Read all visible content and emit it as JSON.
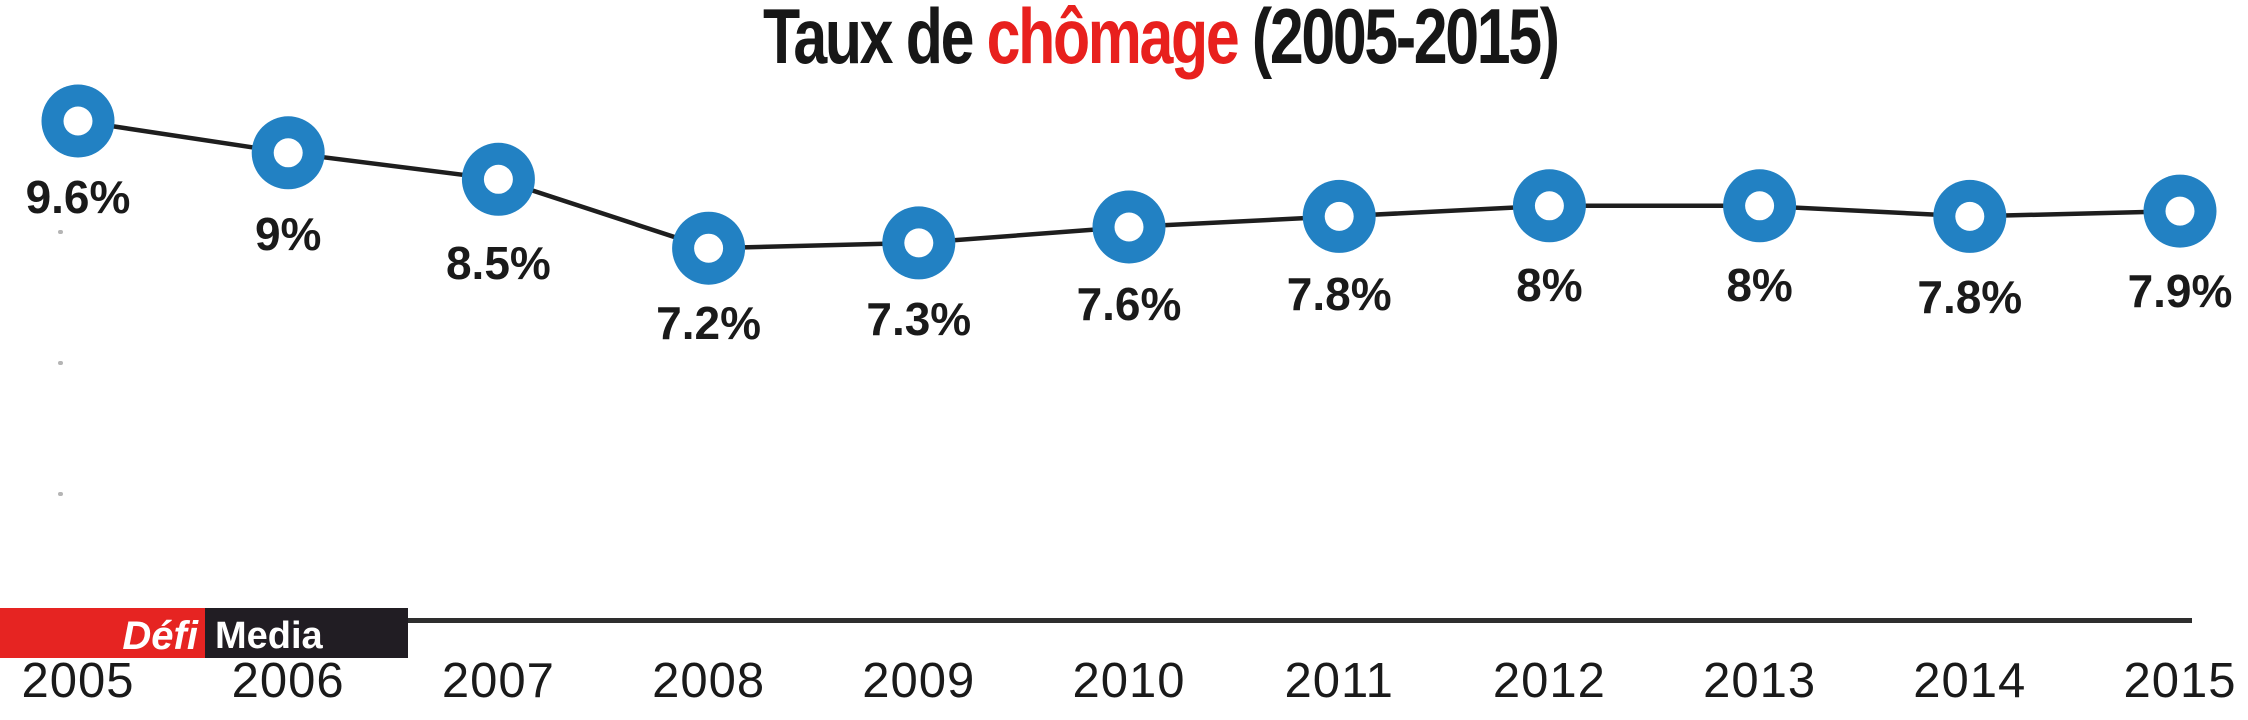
{
  "title": {
    "part1": "Taux de ",
    "highlight": "chômage",
    "part2": " (2005-2015)"
  },
  "branding": {
    "logo_primary": "Défi",
    "logo_secondary": "Media"
  },
  "colors": {
    "title_text": "#171717",
    "title_highlight": "#e8201d",
    "marker_blue": "#2281c3",
    "marker_hole": "#ffffff",
    "line_black": "#1e1e1e",
    "axis_line": "#2e2e2e",
    "label_text": "#1a1a1a",
    "logo_red": "#e62422",
    "logo_dark": "#211d23",
    "background": "#ffffff"
  },
  "chart_data": {
    "type": "line",
    "title": "Taux de chômage (2005-2015)",
    "series_name": "Taux de chômage",
    "categories": [
      "2005",
      "2006",
      "2007",
      "2008",
      "2009",
      "2010",
      "2011",
      "2012",
      "2013",
      "2014",
      "2015"
    ],
    "values": [
      9.6,
      9,
      8.5,
      7.2,
      7.3,
      7.6,
      7.8,
      8,
      8,
      7.8,
      7.9
    ],
    "labels": [
      "9.6%",
      "9%",
      "8.5%",
      "7.2%",
      "7.3%",
      "7.6%",
      "7.8%",
      "8%",
      "8%",
      "7.8%",
      "7.9%"
    ],
    "unit": "%",
    "xlabel": "",
    "ylabel": "",
    "value_range_shown": [
      7.2,
      9.6
    ],
    "marker": "donut",
    "marker_color": "#2281c3",
    "line_color": "#1e1e1e",
    "legend": "none",
    "grid": false,
    "x_axis": "bottom"
  }
}
